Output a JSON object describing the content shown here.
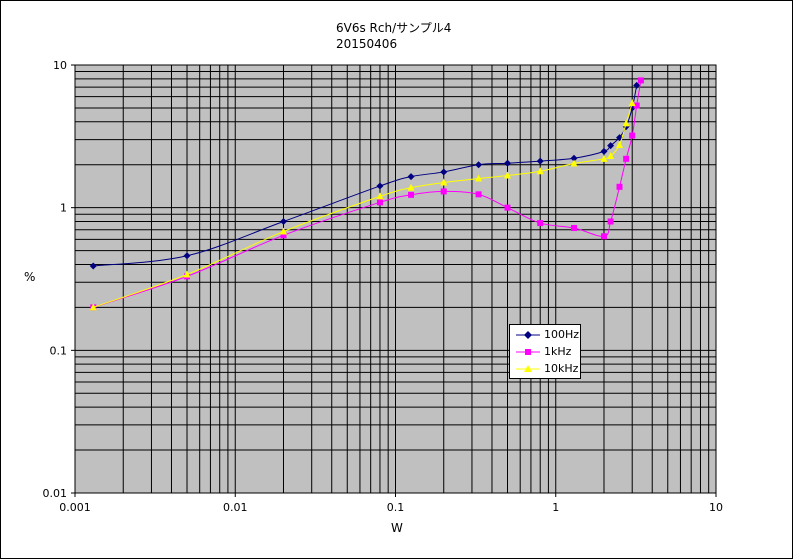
{
  "chart_data": {
    "type": "line",
    "title": "6V6s  Rch/サンプル4",
    "subtitle": "20150406",
    "xlabel": "W",
    "ylabel": "%",
    "x_scale": "log",
    "y_scale": "log",
    "xlim": [
      0.001,
      10
    ],
    "ylim": [
      0.01,
      10
    ],
    "x_ticks": [
      "0.001",
      "0.01",
      "0.1",
      "1",
      "10"
    ],
    "y_ticks": [
      "10",
      "1",
      "0.1",
      "0.01"
    ],
    "grid": true,
    "plot_background": "#c0c0c0",
    "legend_position": "lower-right",
    "series": [
      {
        "name": "100Hz",
        "color": "#000080",
        "marker": "diamond",
        "x": [
          0.0013,
          0.005,
          0.02,
          0.08,
          0.125,
          0.2,
          0.33,
          0.5,
          0.8,
          1.3,
          2.0,
          2.2,
          2.5,
          2.75,
          3.0,
          3.2
        ],
        "y": [
          0.39,
          0.46,
          0.8,
          1.42,
          1.65,
          1.78,
          2.0,
          2.05,
          2.12,
          2.22,
          2.48,
          2.72,
          3.1,
          3.7,
          5.0,
          7.2
        ]
      },
      {
        "name": "1kHz",
        "color": "#ff00ff",
        "marker": "square",
        "x": [
          0.0013,
          0.005,
          0.02,
          0.08,
          0.125,
          0.2,
          0.33,
          0.5,
          0.8,
          1.3,
          2.0,
          2.2,
          2.5,
          2.75,
          3.0,
          3.2,
          3.4
        ],
        "y": [
          0.2,
          0.33,
          0.64,
          1.09,
          1.23,
          1.3,
          1.24,
          1.0,
          0.78,
          0.72,
          0.63,
          0.8,
          1.4,
          2.2,
          3.2,
          5.2,
          7.8
        ]
      },
      {
        "name": "10kHz",
        "color": "#ffff00",
        "marker": "triangle",
        "x": [
          0.0013,
          0.005,
          0.02,
          0.08,
          0.125,
          0.2,
          0.33,
          0.5,
          0.8,
          1.3,
          2.0,
          2.2,
          2.5,
          2.75,
          3.0
        ],
        "y": [
          0.2,
          0.34,
          0.68,
          1.2,
          1.38,
          1.5,
          1.6,
          1.68,
          1.8,
          2.04,
          2.2,
          2.3,
          2.75,
          3.9,
          5.4
        ]
      }
    ]
  }
}
